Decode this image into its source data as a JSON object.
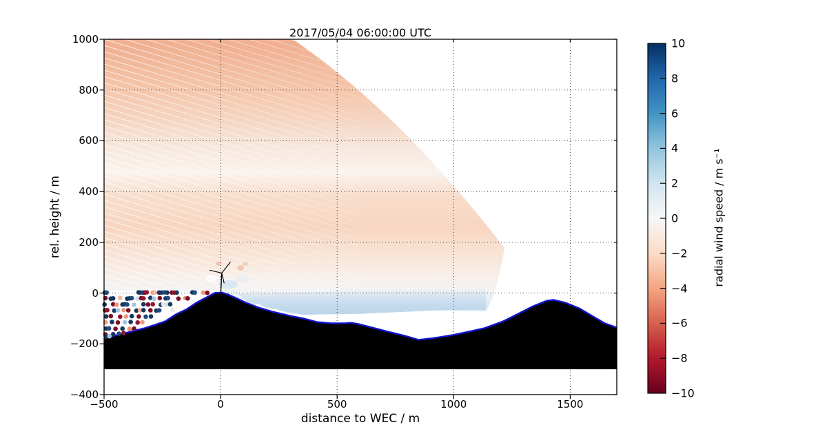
{
  "labels": {
    "title": "2017/05/04 06:00:00 UTC",
    "xlabel": "distance to WEC / m",
    "ylabel": "rel. height / m",
    "colorbar_label": "radial wind speed / m s⁻¹"
  },
  "chart_data": {
    "type": "heatmap",
    "title": "2017/05/04 06:00:00 UTC",
    "xlabel": "distance to WEC / m",
    "ylabel": "rel. height / m",
    "xlim": [
      -500,
      1700
    ],
    "ylim": [
      -400,
      1000
    ],
    "xticks": [
      -500,
      0,
      500,
      1000,
      1500
    ],
    "yticks": [
      1000,
      800,
      600,
      400,
      200,
      0,
      -200,
      -400
    ],
    "grid": "dotted black",
    "colorbar": {
      "label": "radial wind speed / m s⁻¹",
      "ticks": [
        10,
        8,
        6,
        4,
        2,
        0,
        -2,
        -4,
        -6,
        -8,
        -10
      ],
      "cmap": "RdBu",
      "stops": [
        "#053061",
        "#2166ac",
        "#4393c3",
        "#92c5de",
        "#d1e5f0",
        "#f7f7f7",
        "#fddbc7",
        "#f4a582",
        "#d6604d",
        "#b2182b",
        "#67001f"
      ]
    },
    "scan_fan": {
      "comment": "lidar scan sector, radial wind speed field, units meters",
      "outline": [
        [
          "M",
          -500,
          1000
        ],
        [
          "L",
          310,
          1000
        ],
        [
          "Q",
          769,
          712,
          1218,
          178
        ],
        [
          "Q",
          1188,
          2,
          1138,
          -72
        ],
        [
          "L",
          916,
          -66
        ],
        [
          "L",
          591,
          -80
        ],
        [
          "L",
          355,
          -85
        ],
        [
          "L",
          295,
          -80
        ],
        [
          "L",
          207,
          -55
        ],
        [
          "L",
          118,
          -34
        ],
        [
          "L",
          53,
          -12
        ],
        [
          "L",
          6,
          7
        ],
        [
          "L",
          -30,
          10
        ],
        [
          "L",
          -500,
          10
        ],
        [
          "Z"
        ]
      ],
      "gradient_stops": [
        [
          1000,
          "#efae8e"
        ],
        [
          897,
          "#f2ba9d"
        ],
        [
          788,
          "#f5c8ae"
        ],
        [
          680,
          "#f5d5c3"
        ],
        [
          571,
          "#f7e8dd"
        ],
        [
          476,
          "#faf3ee"
        ],
        [
          381,
          "#f8ddcb"
        ],
        [
          259,
          "#f7d6c1"
        ],
        [
          151,
          "#f9e4d6"
        ],
        [
          69,
          "#f8efe9"
        ],
        [
          15,
          "#f3f3f4"
        ],
        [
          -39,
          "#e2ecf4"
        ],
        [
          -93,
          "#d5e5f1"
        ]
      ]
    },
    "blue_band": {
      "comment": "low-level positive radial wind band right of turbine",
      "outline": [
        [
          "M",
          74,
          -4
        ],
        [
          "L",
          1138,
          21
        ],
        [
          "L",
          1138,
          -66
        ],
        [
          "L",
          916,
          -69
        ],
        [
          "L",
          591,
          -82
        ],
        [
          "L",
          355,
          -85
        ],
        [
          "L",
          236,
          -66
        ],
        [
          "L",
          118,
          -39
        ],
        [
          "Z"
        ]
      ],
      "color": "#b9d4ea"
    },
    "beam_stripes": {
      "slope": 0.3,
      "spacing_px": 9,
      "color": "#ffffff"
    },
    "white_scallops": [
      [
        325,
        -91
      ],
      [
        408,
        -96
      ],
      [
        494,
        -102
      ],
      [
        576,
        -96
      ],
      [
        230,
        -72
      ],
      [
        156,
        -53
      ],
      [
        665,
        -96
      ],
      [
        754,
        -91
      ]
    ],
    "terrain": {
      "fill": "#000000",
      "outline_color": "#1414d2",
      "base_height": -300,
      "points": [
        [
          -500,
          -179
        ],
        [
          -444,
          -165
        ],
        [
          -385,
          -152
        ],
        [
          -325,
          -138
        ],
        [
          -281,
          -125
        ],
        [
          -237,
          -111
        ],
        [
          -192,
          -84
        ],
        [
          -148,
          -65
        ],
        [
          -104,
          -38
        ],
        [
          -59,
          -16
        ],
        [
          -24,
          1
        ],
        [
          6,
          2
        ],
        [
          30,
          -5
        ],
        [
          65,
          -19
        ],
        [
          109,
          -38
        ],
        [
          163,
          -57
        ],
        [
          222,
          -73
        ],
        [
          296,
          -89
        ],
        [
          355,
          -100
        ],
        [
          414,
          -114
        ],
        [
          473,
          -119
        ],
        [
          533,
          -119
        ],
        [
          560,
          -117
        ],
        [
          592,
          -122
        ],
        [
          651,
          -136
        ],
        [
          719,
          -152
        ],
        [
          790,
          -168
        ],
        [
          849,
          -184
        ],
        [
          902,
          -179
        ],
        [
          938,
          -174
        ],
        [
          997,
          -165
        ],
        [
          1065,
          -152
        ],
        [
          1133,
          -138
        ],
        [
          1213,
          -111
        ],
        [
          1272,
          -84
        ],
        [
          1340,
          -52
        ],
        [
          1400,
          -30
        ],
        [
          1429,
          -27
        ],
        [
          1480,
          -38
        ],
        [
          1539,
          -60
        ],
        [
          1598,
          -92
        ],
        [
          1648,
          -119
        ],
        [
          1700,
          -136
        ]
      ]
    },
    "turbine": {
      "color": "#0a0a0a",
      "tower": [
        [
          1,
          2
        ],
        [
          5,
          79
        ]
      ],
      "blades": [
        [
          [
            5,
            79
          ],
          [
            42,
            122
          ]
        ],
        [
          [
            5,
            79
          ],
          [
            -46,
            90
          ]
        ],
        [
          [
            5,
            79
          ],
          [
            15,
            40
          ]
        ]
      ]
    },
    "near_turbine_blobs": [
      [
        -9,
        116,
        4,
        3,
        "#f0a47e",
        0.55
      ],
      [
        86,
        99,
        5,
        4,
        "#f0a47e",
        0.5
      ],
      [
        32,
        34,
        14,
        6,
        "#cfe2f0",
        0.75
      ],
      [
        94,
        56,
        10,
        5,
        "#dfecf5",
        0.6
      ],
      [
        -39,
        58,
        8,
        5,
        "#ffffff",
        0.8
      ],
      [
        106,
        116,
        4,
        3,
        "#f0b391",
        0.5
      ]
    ],
    "scatter": {
      "comment": "noisy near-ground lidar returns left of turbine",
      "radius_px": 3.3,
      "palette": {
        "navy": "#17375f",
        "navy2": "#234a7c",
        "maroon": "#7d0d25",
        "maroon2": "#97152e",
        "salmon": "#ec9878",
        "salmon2": "#f3b897",
        "lblue": "#a4c6de",
        "lblue2": "#cfe1ee",
        "pale": "#f2e8e2"
      },
      "points": [
        [
          -497,
          2,
          "navy"
        ],
        [
          -489,
          2,
          "navy2"
        ],
        [
          -352,
          3,
          "navy"
        ],
        [
          -343,
          2,
          "navy"
        ],
        [
          -333,
          2,
          "navy2"
        ],
        [
          -325,
          2,
          "maroon"
        ],
        [
          -317,
          3,
          "maroon2"
        ],
        [
          -291,
          2,
          "salmon"
        ],
        [
          -283,
          2,
          "salmon2"
        ],
        [
          -264,
          2,
          "navy"
        ],
        [
          -253,
          2,
          "navy"
        ],
        [
          -241,
          3,
          "navy2"
        ],
        [
          -229,
          2,
          "navy"
        ],
        [
          -209,
          2,
          "maroon"
        ],
        [
          -199,
          2,
          "maroon2"
        ],
        [
          -188,
          2,
          "navy"
        ],
        [
          -121,
          3,
          "navy"
        ],
        [
          -111,
          2,
          "navy2"
        ],
        [
          -74,
          2,
          "salmon"
        ],
        [
          -57,
          1,
          "maroon"
        ],
        [
          -494,
          -20,
          "maroon"
        ],
        [
          -471,
          -22,
          "navy"
        ],
        [
          -461,
          -21,
          "navy"
        ],
        [
          -431,
          -19,
          "salmon2"
        ],
        [
          -401,
          -22,
          "navy"
        ],
        [
          -391,
          -21,
          "navy"
        ],
        [
          -381,
          -20,
          "navy2"
        ],
        [
          -356,
          -22,
          "lblue2"
        ],
        [
          -341,
          -20,
          "maroon"
        ],
        [
          -331,
          -21,
          "maroon2"
        ],
        [
          -301,
          -19,
          "navy"
        ],
        [
          -286,
          -22,
          "lblue"
        ],
        [
          -261,
          -20,
          "maroon"
        ],
        [
          -236,
          -21,
          "navy"
        ],
        [
          -226,
          -20,
          "navy2"
        ],
        [
          -181,
          -22,
          "maroon"
        ],
        [
          -151,
          -20,
          "salmon"
        ],
        [
          -141,
          -21,
          "maroon"
        ],
        [
          -498,
          -45,
          "navy"
        ],
        [
          -461,
          -44,
          "maroon"
        ],
        [
          -446,
          -46,
          "salmon"
        ],
        [
          -421,
          -45,
          "navy"
        ],
        [
          -411,
          -44,
          "navy"
        ],
        [
          -401,
          -45,
          "navy2"
        ],
        [
          -371,
          -46,
          "lblue"
        ],
        [
          -331,
          -44,
          "navy"
        ],
        [
          -311,
          -45,
          "maroon"
        ],
        [
          -291,
          -44,
          "maroon2"
        ],
        [
          -256,
          -46,
          "navy"
        ],
        [
          -246,
          -44,
          "pale"
        ],
        [
          -231,
          -45,
          "lblue2"
        ],
        [
          -216,
          -44,
          "navy"
        ],
        [
          -496,
          -68,
          "maroon"
        ],
        [
          -486,
          -67,
          "maroon2"
        ],
        [
          -456,
          -69,
          "navy"
        ],
        [
          -441,
          -68,
          "lblue"
        ],
        [
          -416,
          -67,
          "salmon"
        ],
        [
          -396,
          -68,
          "maroon"
        ],
        [
          -361,
          -69,
          "navy"
        ],
        [
          -346,
          -68,
          "salmon2"
        ],
        [
          -331,
          -67,
          "navy"
        ],
        [
          -301,
          -68,
          "maroon"
        ],
        [
          -276,
          -69,
          "navy"
        ],
        [
          -263,
          -68,
          "navy2"
        ],
        [
          -206,
          -67,
          "pale"
        ],
        [
          -491,
          -92,
          "navy"
        ],
        [
          -471,
          -91,
          "maroon"
        ],
        [
          -431,
          -93,
          "maroon2"
        ],
        [
          -406,
          -92,
          "salmon"
        ],
        [
          -381,
          -91,
          "navy"
        ],
        [
          -351,
          -92,
          "maroon"
        ],
        [
          -321,
          -93,
          "navy2"
        ],
        [
          -299,
          -92,
          "navy"
        ],
        [
          -494,
          -115,
          "salmon"
        ],
        [
          -466,
          -114,
          "navy"
        ],
        [
          -441,
          -116,
          "maroon"
        ],
        [
          -411,
          -115,
          "lblue"
        ],
        [
          -386,
          -114,
          "navy"
        ],
        [
          -356,
          -116,
          "maroon2"
        ],
        [
          -336,
          -115,
          "salmon"
        ],
        [
          -491,
          -140,
          "navy"
        ],
        [
          -479,
          -139,
          "navy2"
        ],
        [
          -451,
          -141,
          "maroon"
        ],
        [
          -421,
          -140,
          "navy"
        ],
        [
          -391,
          -141,
          "salmon"
        ],
        [
          -371,
          -140,
          "maroon"
        ],
        [
          -494,
          -163,
          "maroon"
        ],
        [
          -461,
          -162,
          "navy"
        ],
        [
          -436,
          -160,
          "navy2"
        ],
        [
          -416,
          -157,
          "maroon2"
        ],
        [
          -491,
          -172,
          "navy"
        ],
        [
          -477,
          -170,
          "lblue"
        ]
      ]
    }
  }
}
